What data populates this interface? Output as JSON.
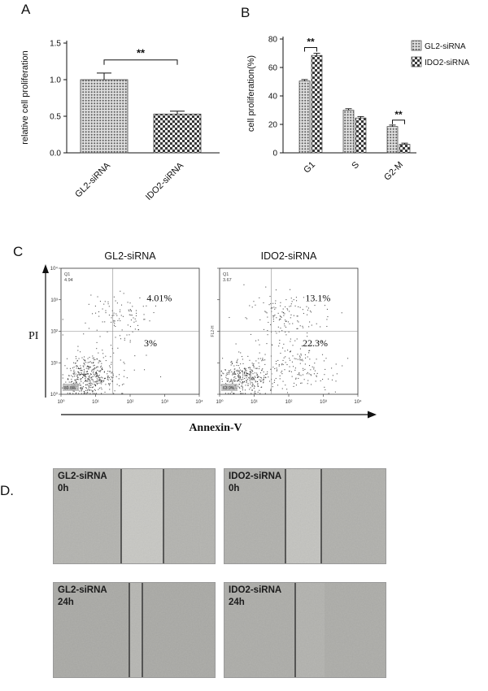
{
  "figure": {
    "panel_a_label": "A",
    "panel_b_label": "B",
    "panel_c_label": "C",
    "panel_d_label": "D."
  },
  "chart_data": [
    {
      "id": "A",
      "type": "bar",
      "title": "",
      "ylabel": "relative cell proliferation",
      "ylim": [
        0,
        1.5
      ],
      "yticks": [
        0.0,
        0.5,
        1.0,
        1.5
      ],
      "categories": [
        "GL2-siRNA",
        "IDO2-siRNA"
      ],
      "values": [
        1.0,
        0.53
      ],
      "errors": [
        0.09,
        0.04
      ],
      "significance": {
        "label": "**",
        "y": 1.27
      }
    },
    {
      "id": "B",
      "type": "bar",
      "title": "",
      "ylabel": "cell proliferation(%)",
      "ylim": [
        0,
        80
      ],
      "yticks": [
        0,
        20,
        40,
        60,
        80
      ],
      "categories": [
        "G1",
        "S",
        "G2-M"
      ],
      "series": [
        {
          "name": "GL2-siRNA",
          "pattern": "dots",
          "values": [
            50.5,
            30,
            18.5
          ],
          "errors": [
            1,
            1,
            1
          ]
        },
        {
          "name": "IDO2-siRNA",
          "pattern": "checker",
          "values": [
            68.5,
            24.5,
            6
          ],
          "errors": [
            1.5,
            1,
            0.8
          ]
        }
      ],
      "significance": [
        {
          "label": "**",
          "category": 0,
          "y": 74
        },
        {
          "label": "**",
          "category": 2,
          "y": 23
        }
      ],
      "legend_position": "top-right"
    },
    {
      "id": "C-left",
      "type": "scatter",
      "title": "GL2-siRNA",
      "xlabel": "Annexin-V",
      "ylabel": "PI",
      "xlim_log": [
        0,
        4
      ],
      "ylim_log": [
        0,
        4
      ],
      "quadrant_x": 1.5,
      "quadrant_y": 2.0,
      "labels": {
        "q1_name": "Q1",
        "q1_value": "4.94",
        "upper_right": "4.01%",
        "lower_right": "3%",
        "q4_value": "89.0%"
      },
      "clusters": [
        {
          "cx": 0.75,
          "cy": 0.55,
          "sx": 0.38,
          "sy": 0.3,
          "n": 400
        },
        {
          "cx": 1.7,
          "cy": 2.55,
          "sx": 0.5,
          "sy": 0.3,
          "n": 90
        },
        {
          "cx": 1.3,
          "cy": 1.2,
          "sx": 0.7,
          "sy": 0.6,
          "n": 50
        }
      ]
    },
    {
      "id": "C-right",
      "type": "scatter",
      "title": "IDO2-siRNA",
      "xlabel": "Annexin-V",
      "ylabel": "PI",
      "xlim_log": [
        0,
        4
      ],
      "ylim_log": [
        0,
        4
      ],
      "quadrant_x": 1.5,
      "quadrant_y": 2.0,
      "labels": {
        "q1_name": "Q1",
        "q1_value": "3.67",
        "upper_right": "13.1%",
        "lower_right": "22.3%",
        "q4_value": "63.9%",
        "side": "FL2-H"
      },
      "clusters": [
        {
          "cx": 0.7,
          "cy": 0.55,
          "sx": 0.35,
          "sy": 0.28,
          "n": 300
        },
        {
          "cx": 2.25,
          "cy": 0.85,
          "sx": 0.55,
          "sy": 0.4,
          "n": 150
        },
        {
          "cx": 1.9,
          "cy": 2.55,
          "sx": 0.55,
          "sy": 0.35,
          "n": 110
        },
        {
          "cx": 1.6,
          "cy": 1.5,
          "sx": 0.8,
          "sy": 0.7,
          "n": 50
        }
      ]
    }
  ],
  "flow_axis": {
    "y_label": "PI",
    "x_label": "Annexin-V",
    "ticks": [
      "10⁰",
      "10¹",
      "10²",
      "10³",
      "10⁴"
    ]
  },
  "panel_d": {
    "images": [
      {
        "label_line1": "GL2-siRNA",
        "label_line2": "0h",
        "base": "#b3b3af",
        "band": [
          0.42,
          0.68
        ],
        "band_color": "#c7c7c3",
        "lines": [
          0.42,
          0.68
        ]
      },
      {
        "label_line1": "IDO2-siRNA",
        "label_line2": "0h",
        "base": "#b0b0ac",
        "band": [
          0.38,
          0.6
        ],
        "band_color": "#c3c3bf",
        "lines": [
          0.38,
          0.6
        ]
      },
      {
        "label_line1": "GL2-siRNA",
        "label_line2": "24h",
        "base": "#a9a9a5",
        "band": [
          0.47,
          0.55
        ],
        "band_color": "#b6b6b2",
        "lines": [
          0.47,
          0.55
        ]
      },
      {
        "label_line1": "IDO2-siRNA",
        "label_line2": "24h",
        "base": "#acaca8",
        "band": [
          0.44,
          0.62
        ],
        "band_color": "#b2b2ae",
        "lines": [
          0.44
        ]
      }
    ]
  }
}
